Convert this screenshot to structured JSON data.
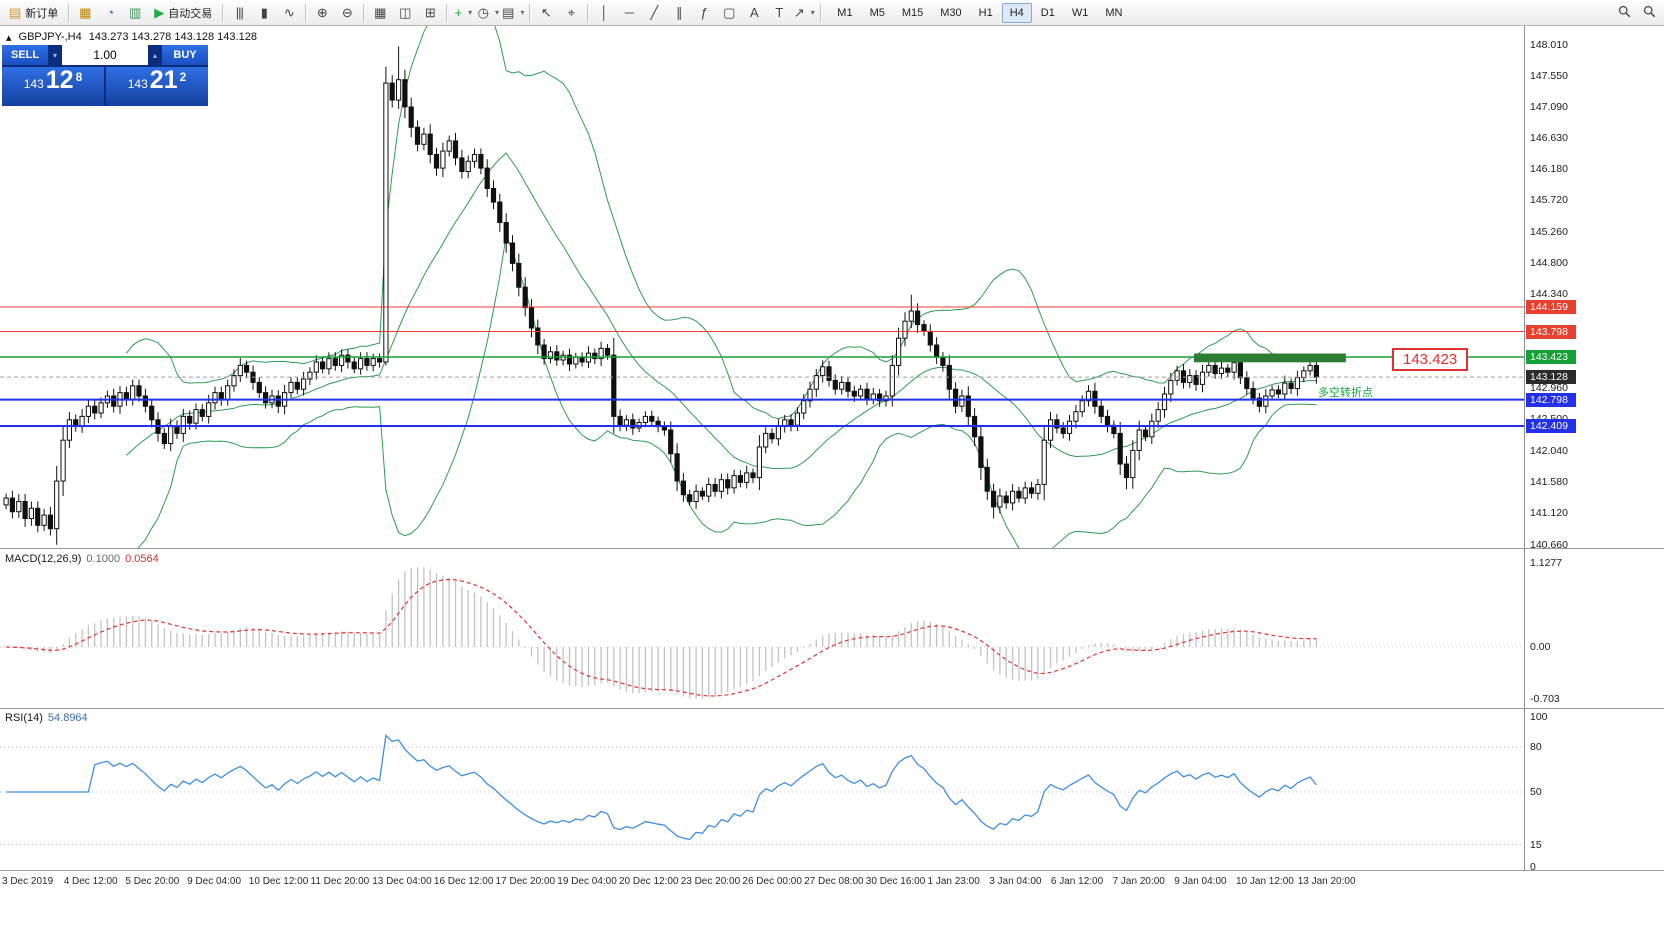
{
  "toolbar": {
    "timeframes": [
      "M1",
      "M5",
      "M15",
      "M30",
      "H1",
      "H4",
      "D1",
      "W1",
      "MN"
    ],
    "active_timeframe": "H4",
    "items": [
      {
        "type": "button",
        "name": "new-order",
        "glyph": "▤",
        "color": "#c9982a",
        "label": "新订单"
      },
      {
        "type": "sep"
      },
      {
        "type": "icon",
        "name": "chart-window",
        "glyph": "▦",
        "color": "#b8860b"
      },
      {
        "type": "icon",
        "name": "profiles",
        "glyph": "◔",
        "color": "#3b6fb5"
      },
      {
        "type": "icon",
        "name": "data-window",
        "glyph": "▥",
        "color": "#3b8f5a"
      },
      {
        "type": "button",
        "name": "auto-trading",
        "glyph": "▶",
        "color": "#1fae3f",
        "label": "自动交易"
      },
      {
        "type": "sep"
      },
      {
        "type": "icon",
        "name": "bar-chart-mode",
        "glyph": "|||"
      },
      {
        "type": "icon",
        "name": "candlestick-mode",
        "glyph": "▮"
      },
      {
        "type": "icon",
        "name": "line-chart-mode",
        "glyph": "∿"
      },
      {
        "type": "sep"
      },
      {
        "type": "icon",
        "name": "zoom-in",
        "glyph": "⊕"
      },
      {
        "type": "icon",
        "name": "zoom-out",
        "glyph": "⊖"
      },
      {
        "type": "sep"
      },
      {
        "type": "icon",
        "name": "tile-windows",
        "glyph": "▦"
      },
      {
        "type": "icon",
        "name": "cascade-windows",
        "glyph": "◫"
      },
      {
        "type": "icon",
        "name": "arrange-windows",
        "glyph": "⊞"
      },
      {
        "type": "sep"
      },
      {
        "type": "icon",
        "name": "indicators",
        "glyph": "+",
        "color": "#1fae3f",
        "dropdown": true
      },
      {
        "type": "icon",
        "name": "periods",
        "glyph": "◷",
        "dropdown": true
      },
      {
        "type": "icon",
        "name": "templates",
        "glyph": "▤",
        "dropdown": true
      },
      {
        "type": "sep"
      },
      {
        "type": "icon",
        "name": "cursor",
        "glyph": "↖"
      },
      {
        "type": "icon",
        "name": "crosshair",
        "glyph": "⌖"
      },
      {
        "type": "sep"
      },
      {
        "type": "icon",
        "name": "vertical-line",
        "glyph": "│"
      },
      {
        "type": "icon",
        "name": "horizontal-line",
        "glyph": "─"
      },
      {
        "type": "icon",
        "name": "trendline",
        "glyph": "╱"
      },
      {
        "type": "icon",
        "name": "equidistant-channel",
        "glyph": "∥"
      },
      {
        "type": "icon",
        "name": "fibonacci",
        "glyph": "ƒ"
      },
      {
        "type": "icon",
        "name": "shapes",
        "glyph": "▢"
      },
      {
        "type": "icon",
        "name": "text",
        "glyph": "A"
      },
      {
        "type": "icon",
        "name": "text-label",
        "glyph": "T"
      },
      {
        "type": "icon",
        "name": "arrows",
        "glyph": "↗",
        "dropdown": true
      },
      {
        "type": "sep"
      },
      {
        "type": "timeframes"
      },
      {
        "type": "spacer"
      },
      {
        "type": "icon",
        "name": "search",
        "glyph": "MAG"
      },
      {
        "type": "icon",
        "name": "quick-search",
        "glyph": "MAG"
      }
    ]
  },
  "symbol_header": {
    "symbol": "GBPJPY-,H4",
    "ohlc": "143.273 143.278 143.128 143.128"
  },
  "trade_panel": {
    "sell_label": "SELL",
    "buy_label": "BUY",
    "volume": "1.00",
    "sell_price_prefix": "143",
    "sell_price_big": "12",
    "sell_price_sup": "8",
    "buy_price_prefix": "143",
    "buy_price_big": "21",
    "buy_price_sup": "2"
  },
  "chart": {
    "price_label": "143.423",
    "note": "多空转折点",
    "bid_price": 143.128,
    "hlines": [
      {
        "price": 144.159,
        "color": "#f23b2e",
        "width": 1
      },
      {
        "price": 143.798,
        "color": "#f23b2e",
        "width": 1
      },
      {
        "price": 143.423,
        "color": "#16a138",
        "width": 1.4
      },
      {
        "price": 142.798,
        "color": "#2330e8",
        "width": 2
      },
      {
        "price": 142.409,
        "color": "#2330e8",
        "width": 2
      }
    ],
    "green_box": {
      "i1": 188,
      "i2": 212,
      "price_top": 143.475,
      "price_bottom": 143.345,
      "color": "#2e7d32"
    }
  },
  "price_scale": {
    "ticks": [
      "148.010",
      "147.550",
      "147.090",
      "146.630",
      "146.180",
      "145.720",
      "145.260",
      "144.800",
      "144.340",
      "142.960",
      "142.500",
      "142.040",
      "141.580",
      "141.120",
      "140.660"
    ],
    "badges": [
      {
        "value": "144.159",
        "bg": "#e8402e"
      },
      {
        "value": "143.798",
        "bg": "#e8402e"
      },
      {
        "value": "143.423",
        "bg": "#16a138"
      },
      {
        "value": "143.128",
        "bg": "#2b2b2b"
      },
      {
        "value": "142.798",
        "bg": "#2330e8"
      },
      {
        "value": "142.409",
        "bg": "#2330e8"
      }
    ]
  },
  "macd": {
    "label": "MACD(12,26,9)",
    "value_main": "0.1000",
    "value_signal": "0.0564",
    "scale": [
      {
        "text": "1.1277",
        "v": 1.1277
      },
      {
        "text": "0.00",
        "v": 0
      },
      {
        "text": "-0.703",
        "v": -0.703
      }
    ],
    "histogram_color": "#c2c2c2",
    "signal_color": "#e23434"
  },
  "rsi": {
    "label": "RSI(14)",
    "value": "54.8964",
    "levels": [
      {
        "text": "100",
        "v": 100
      },
      {
        "text": "80",
        "v": 80
      },
      {
        "text": "50",
        "v": 50
      },
      {
        "text": "15",
        "v": 15
      },
      {
        "text": "0",
        "v": 0
      }
    ],
    "level_lines": [
      80,
      50,
      15
    ],
    "line_color": "#3f8ede"
  },
  "time_axis": [
    "3 Dec 2019",
    "4 Dec 12:00",
    "5 Dec 20:00",
    "9 Dec 04:00",
    "10 Dec 12:00",
    "11 Dec 20:00",
    "13 Dec 04:00",
    "16 Dec 12:00",
    "17 Dec 20:00",
    "19 Dec 04:00",
    "20 Dec 12:00",
    "23 Dec 20:00",
    "26 Dec 00:00",
    "27 Dec 08:00",
    "30 Dec 16:00",
    "1 Jan 23:00",
    "3 Jan 04:00",
    "6 Jan 12:00",
    "7 Jan 20:00",
    "9 Jan 04:00",
    "10 Jan 12:00",
    "13 Jan 20:00"
  ],
  "chart_data": {
    "type": "candlestick",
    "symbol": "GBPJPY",
    "timeframe": "H4",
    "price_min": 140.66,
    "price_max": 148.01,
    "price_tick_step": 0.46,
    "bollinger": {
      "period": 20,
      "deviation": 2,
      "color": "#2e9b57"
    },
    "closes": [
      141.35,
      141.15,
      141.3,
      141.05,
      141.2,
      140.95,
      141.1,
      140.9,
      141.6,
      142.2,
      142.5,
      142.4,
      142.55,
      142.7,
      142.6,
      142.75,
      142.85,
      142.7,
      142.9,
      142.8,
      143.0,
      142.85,
      142.7,
      142.5,
      142.3,
      142.15,
      142.4,
      142.3,
      142.55,
      142.45,
      142.65,
      142.55,
      142.75,
      142.9,
      142.8,
      143.0,
      143.15,
      143.3,
      143.2,
      143.05,
      142.9,
      142.75,
      142.85,
      142.7,
      142.9,
      143.05,
      142.95,
      143.1,
      143.2,
      143.35,
      143.25,
      143.4,
      143.3,
      143.45,
      143.35,
      143.25,
      143.4,
      143.3,
      143.4,
      143.35,
      147.45,
      147.2,
      147.5,
      147.1,
      146.8,
      146.55,
      146.7,
      146.4,
      146.2,
      146.45,
      146.6,
      146.35,
      146.15,
      146.3,
      146.4,
      146.2,
      145.9,
      145.7,
      145.4,
      145.1,
      144.8,
      144.45,
      144.15,
      143.85,
      143.6,
      143.4,
      143.5,
      143.38,
      143.45,
      143.32,
      143.42,
      143.35,
      143.48,
      143.4,
      143.55,
      143.45,
      142.55,
      142.42,
      142.5,
      142.38,
      142.46,
      142.55,
      142.48,
      142.4,
      142.35,
      142.0,
      141.6,
      141.4,
      141.3,
      141.45,
      141.38,
      141.55,
      141.45,
      141.62,
      141.5,
      141.68,
      141.58,
      141.72,
      141.65,
      142.1,
      142.3,
      142.22,
      142.4,
      142.5,
      142.42,
      142.6,
      142.78,
      142.95,
      143.15,
      143.28,
      143.08,
      142.95,
      143.05,
      142.92,
      142.85,
      142.95,
      142.8,
      142.88,
      142.78,
      142.85,
      143.3,
      143.7,
      143.95,
      144.1,
      143.9,
      143.8,
      143.6,
      143.42,
      143.3,
      142.95,
      142.7,
      142.85,
      142.55,
      142.25,
      141.8,
      141.45,
      141.22,
      141.38,
      141.28,
      141.45,
      141.35,
      141.5,
      141.42,
      141.55,
      142.2,
      142.5,
      142.38,
      142.3,
      142.48,
      142.62,
      142.78,
      142.92,
      142.7,
      142.55,
      142.42,
      142.3,
      141.85,
      141.65,
      142.05,
      142.35,
      142.25,
      142.48,
      142.65,
      142.88,
      143.08,
      143.22,
      143.05,
      143.15,
      143.02,
      143.2,
      143.3,
      143.18,
      143.26,
      143.2,
      143.34,
      143.12,
      142.96,
      142.82,
      142.7,
      142.85,
      142.94,
      142.88,
      143.04,
      142.96,
      143.12,
      143.22,
      143.3,
      143.128
    ],
    "wick_overrides": [
      {
        "i": 7,
        "l": 140.8
      },
      {
        "i": 60,
        "l": 143.3
      },
      {
        "i": 62,
        "h": 147.99
      },
      {
        "i": 108,
        "l": 141.25
      },
      {
        "i": 143,
        "h": 144.34
      },
      {
        "i": 156,
        "l": 141.05
      },
      {
        "i": 177,
        "l": 141.48
      }
    ]
  }
}
